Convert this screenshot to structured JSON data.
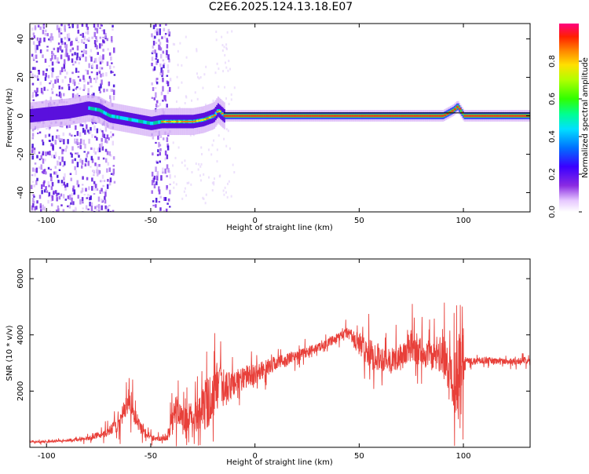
{
  "title": "C2E6.2025.124.13.18.E07",
  "chart_data": [
    {
      "type": "heatmap",
      "xlabel": "Height of straight line (km)",
      "ylabel": "Frequency (Hz)",
      "xlim": [
        -108,
        132
      ],
      "ylim": [
        -50,
        48
      ],
      "xticks": [
        -100,
        -50,
        0,
        50,
        100
      ],
      "yticks": [
        -40,
        -20,
        0,
        20,
        40
      ],
      "colorbar": {
        "label": "Normalized spectral amplitude",
        "ticks": [
          0.0,
          0.2,
          0.4,
          0.6,
          0.8
        ],
        "range": [
          0,
          1
        ]
      },
      "ridge": {
        "x": [
          -108,
          -100,
          -90,
          -80,
          -75,
          -70,
          -60,
          -55,
          -50,
          -45,
          -40,
          -30,
          -25,
          -20,
          -18,
          -15,
          -10,
          0,
          50,
          90,
          95,
          97,
          100,
          132
        ],
        "y": [
          0,
          1,
          2,
          4,
          3,
          0,
          -2,
          -3,
          -4,
          -3,
          -3,
          -3,
          -2,
          0,
          3,
          0,
          0,
          0,
          0,
          0,
          3,
          5,
          0,
          0
        ]
      },
      "noise_bands": [
        {
          "x_from": -108,
          "x_to": -68
        },
        {
          "x_from": -50,
          "x_to": -41
        }
      ]
    },
    {
      "type": "line",
      "xlabel": "Height of straight line (km)",
      "ylabel": "SNR (10 * v/v)",
      "xlim": [
        -108,
        132
      ],
      "ylim": [
        0,
        6700
      ],
      "xticks": [
        -100,
        -50,
        0,
        50,
        100
      ],
      "yticks": [
        2000,
        4000,
        6000
      ],
      "series": [
        {
          "color": "#e8403a",
          "x": [
            -108,
            -100,
            -90,
            -80,
            -75,
            -70,
            -65,
            -62,
            -60,
            -58,
            -55,
            -52,
            -50,
            -45,
            -42,
            -40,
            -38,
            -35,
            -30,
            -25,
            -22,
            -20,
            -18,
            -15,
            -10,
            -5,
            0,
            5,
            10,
            15,
            20,
            25,
            30,
            35,
            40,
            45,
            47,
            50,
            55,
            60,
            65,
            70,
            75,
            80,
            85,
            90,
            93,
            95,
            97,
            98,
            100,
            101,
            105,
            110,
            120,
            132
          ],
          "y": [
            200,
            200,
            250,
            300,
            450,
            550,
            900,
            1400,
            1800,
            1200,
            700,
            500,
            350,
            300,
            350,
            900,
            1400,
            1000,
            1100,
            1400,
            1700,
            1900,
            2100,
            2000,
            2300,
            2500,
            2600,
            2800,
            3000,
            3100,
            3250,
            3400,
            3550,
            3700,
            3900,
            4100,
            3800,
            3700,
            3300,
            3200,
            3100,
            3200,
            3600,
            3400,
            3200,
            3300,
            2600,
            2800,
            2200,
            3000,
            3200,
            3100,
            3050,
            3100,
            3050,
            3100
          ],
          "noise": [
            60,
            60,
            80,
            120,
            200,
            300,
            500,
            700,
            800,
            600,
            350,
            250,
            200,
            150,
            200,
            700,
            900,
            700,
            900,
            1400,
            1600,
            1500,
            1500,
            1000,
            900,
            700,
            600,
            500,
            450,
            400,
            350,
            300,
            250,
            250,
            300,
            400,
            600,
            700,
            900,
            800,
            700,
            800,
            1000,
            900,
            800,
            1200,
            1600,
            2000,
            2500,
            2300,
            1800,
            200,
            200,
            200,
            200,
            200
          ]
        }
      ]
    }
  ]
}
